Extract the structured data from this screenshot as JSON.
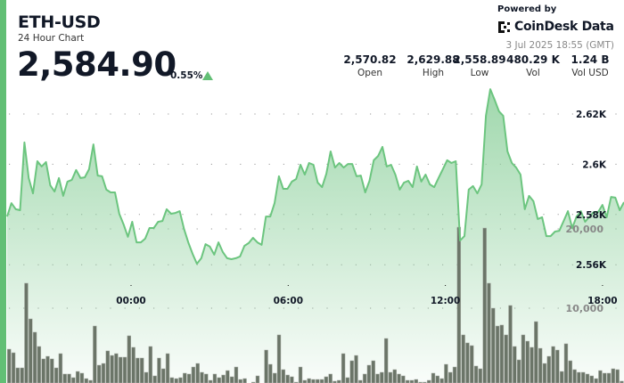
{
  "header": {
    "symbol": "ETH-USD",
    "subtitle": "24 Hour Chart",
    "price": "2,584.90",
    "change_pct": "0.55%",
    "change_direction": "up",
    "powered_by": "Powered by",
    "brand": "CoinDesk Data",
    "timestamp": "3 Jul 2025 18:55 (GMT)"
  },
  "stats": [
    {
      "value": "2,570.82",
      "label": "Open"
    },
    {
      "value": "2,629.88",
      "label": "High"
    },
    {
      "value": "2,558.89",
      "label": "Low"
    },
    {
      "value": "480.29 K",
      "label": "Vol"
    },
    {
      "value": "1.24 B",
      "label": "Vol USD"
    }
  ],
  "colors": {
    "accent": "#62bf75",
    "line": "#6cc57f",
    "volume_bar": "#6b7568",
    "text": "#111827"
  },
  "chart_data": {
    "type": "area",
    "grid": "dotted horizontal",
    "price_axis": {
      "ticks": [
        2560,
        2580,
        2600,
        2620
      ],
      "tick_labels": [
        "2.56K",
        "2.58K",
        "2.6K",
        "2.62K"
      ]
    },
    "volume_axis": {
      "ticks": [
        10000,
        20000
      ],
      "tick_labels": [
        "10,000",
        "20,000"
      ]
    },
    "time_ticks": [
      "00:00",
      "06:00",
      "12:00",
      "18:00"
    ],
    "price": [
      2579.2,
      2584.5,
      2582.1,
      2581.7,
      2608.7,
      2594.5,
      2588.4,
      2601.2,
      2599.1,
      2600.9,
      2591.6,
      2589.1,
      2594.5,
      2587.4,
      2593.1,
      2593.8,
      2597.7,
      2594.5,
      2594.8,
      2598.0,
      2607.9,
      2595.5,
      2595.2,
      2589.9,
      2588.8,
      2588.8,
      2580.3,
      2576.0,
      2571.1,
      2577.1,
      2568.9,
      2568.9,
      2570.4,
      2574.6,
      2574.6,
      2577.1,
      2577.4,
      2582.1,
      2580.3,
      2580.6,
      2581.3,
      2574.3,
      2568.9,
      2564.3,
      2560.4,
      2562.6,
      2568.2,
      2567.2,
      2564.0,
      2568.9,
      2565.0,
      2562.6,
      2562.2,
      2562.6,
      2563.3,
      2567.5,
      2568.6,
      2570.7,
      2568.9,
      2567.9,
      2579.2,
      2579.2,
      2584.5,
      2595.2,
      2590.2,
      2590.2,
      2593.1,
      2594.1,
      2599.8,
      2595.9,
      2600.5,
      2599.8,
      2592.7,
      2590.9,
      2596.2,
      2605.1,
      2598.7,
      2600.5,
      2598.7,
      2600.1,
      2600.1,
      2595.2,
      2595.5,
      2588.8,
      2593.4,
      2601.6,
      2603.3,
      2606.9,
      2599.1,
      2599.8,
      2595.9,
      2589.9,
      2592.7,
      2593.4,
      2590.9,
      2599.1,
      2593.1,
      2595.9,
      2592.0,
      2590.9,
      2594.5,
      2598.0,
      2601.6,
      2600.5,
      2601.2,
      2569.6,
      2571.4,
      2589.9,
      2591.3,
      2588.4,
      2592.0,
      2619.3,
      2629.9,
      2625.7,
      2621.1,
      2619.3,
      2605.1,
      2600.5,
      2598.7,
      2595.9,
      2582.1,
      2587.4,
      2585.3,
      2578.2,
      2578.9,
      2571.4,
      2571.4,
      2573.2,
      2573.5,
      2577.4,
      2581.3,
      2574.6,
      2579.2,
      2581.3,
      2577.1,
      2579.2,
      2581.0,
      2581.0,
      2583.8,
      2578.9,
      2587.0,
      2586.7,
      2581.7,
      2584.9
    ],
    "volume": [
      4830,
      4380,
      2470,
      2470,
      13150,
      8650,
      6970,
      5170,
      3600,
      3930,
      3600,
      2470,
      4270,
      1690,
      1690,
      1240,
      2020,
      1800,
      1120,
      900,
      7750,
      2810,
      3030,
      4610,
      4040,
      4270,
      3820,
      3820,
      6520,
      5060,
      3710,
      3710,
      1910,
      5170,
      1460,
      3710,
      2360,
      4270,
      1240,
      1120,
      1240,
      1800,
      1690,
      2580,
      3030,
      1910,
      1690,
      900,
      1690,
      1240,
      1570,
      2130,
      1350,
      2580,
      1010,
      1120,
      560,
      670,
      1460,
      450,
      4720,
      2920,
      1800,
      6630,
      2250,
      1570,
      1350,
      670,
      2580,
      900,
      1120,
      1010,
      1010,
      1010,
      1350,
      1690,
      790,
      900,
      4270,
      1240,
      3370,
      4040,
      900,
      1690,
      2810,
      3370,
      1690,
      1910,
      6180,
      1910,
      2250,
      1690,
      1460,
      900,
      900,
      1010,
      670,
      670,
      900,
      1800,
      1460,
      1120,
      2920,
      1910,
      2580,
      20220,
      6630,
      5620,
      5280,
      2700,
      2360,
      20110,
      13150,
      10000,
      7750,
      7870,
      6630,
      10340,
      5170,
      3480,
      6630,
      5840,
      5060,
      8310,
      4940,
      3030,
      3930,
      5170,
      4720,
      2020,
      5510,
      3370,
      2250,
      1910,
      1910,
      1690,
      1460,
      1120,
      2130,
      1800,
      1800,
      2360,
      2250,
      790
    ]
  }
}
